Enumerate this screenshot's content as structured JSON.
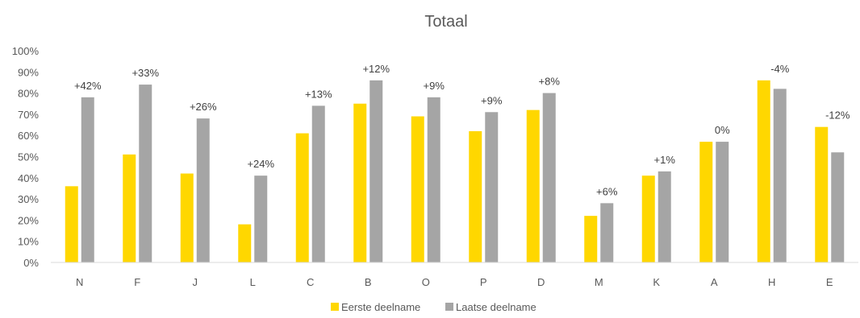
{
  "chart_data": {
    "type": "bar",
    "title": "Totaal",
    "categories": [
      "N",
      "F",
      "J",
      "L",
      "C",
      "B",
      "O",
      "P",
      "D",
      "M",
      "K",
      "A",
      "H",
      "E"
    ],
    "series": [
      {
        "name": "Eerste deelname",
        "color": "#FFD700",
        "values": [
          36,
          51,
          42,
          18,
          61,
          75,
          69,
          62,
          72,
          22,
          41,
          57,
          86,
          64
        ]
      },
      {
        "name": "Laatse deelname",
        "color": "#A5A5A5",
        "values": [
          78,
          84,
          68,
          41,
          74,
          86,
          78,
          71,
          80,
          28,
          43,
          57,
          82,
          52
        ]
      }
    ],
    "data_labels": [
      "+42%",
      "+33%",
      "+26%",
      "+24%",
      "+13%",
      "+12%",
      "+9%",
      "+9%",
      "+8%",
      "+6%",
      "+1%",
      "0%",
      "-4%",
      "-12%"
    ],
    "ylim": [
      0,
      100
    ],
    "yticks": [
      "0%",
      "10%",
      "20%",
      "30%",
      "40%",
      "50%",
      "60%",
      "70%",
      "80%",
      "90%",
      "100%"
    ],
    "grid": false,
    "legend_position": "bottom"
  }
}
